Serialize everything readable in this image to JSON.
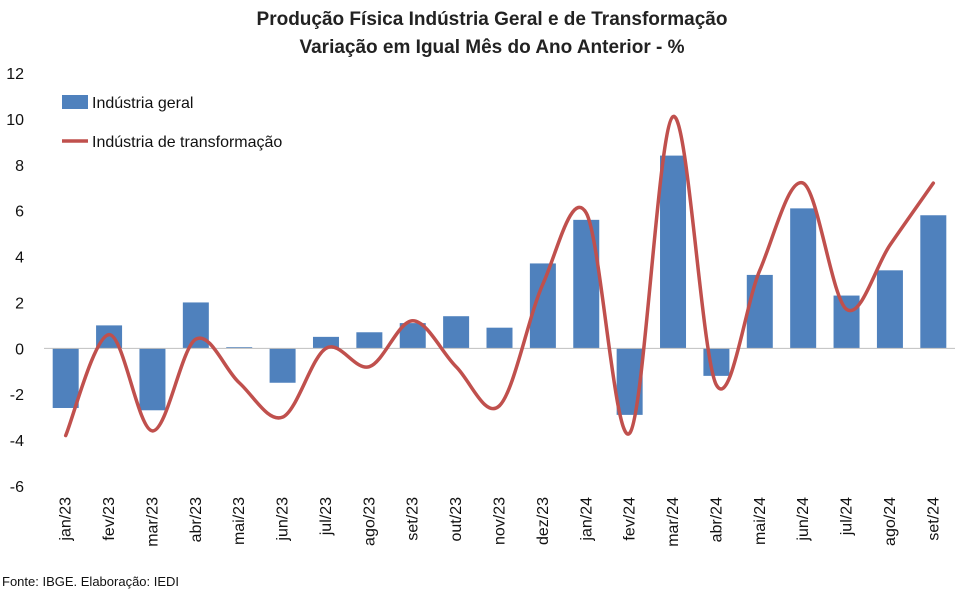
{
  "chart_data": {
    "type": "bar",
    "title": "Produção Física Indústria Geral e de Transformação",
    "subtitle": "Variação em Igual Mês do Ano Anterior - %",
    "xlabel": "",
    "ylabel": "",
    "ylim": [
      -6,
      12
    ],
    "yticks": [
      -6,
      -4,
      -2,
      0,
      2,
      4,
      6,
      8,
      10,
      12
    ],
    "categories": [
      "jan/23",
      "fev/23",
      "mar/23",
      "abr/23",
      "mai/23",
      "jun/23",
      "jul/23",
      "ago/23",
      "set/23",
      "out/23",
      "nov/23",
      "dez/23",
      "jan/24",
      "fev/24",
      "mar/24",
      "abr/24",
      "mai/24",
      "jun/24",
      "jul/24",
      "ago/24",
      "set/24"
    ],
    "series": [
      {
        "name": "Indústria geral",
        "kind": "bar",
        "color": "#4f81bd",
        "values": [
          -2.6,
          1.0,
          -2.7,
          2.0,
          0.05,
          -1.5,
          0.5,
          0.7,
          1.1,
          1.4,
          0.9,
          3.7,
          5.6,
          -2.9,
          8.4,
          -1.2,
          3.2,
          6.1,
          2.3,
          3.4,
          5.8
        ]
      },
      {
        "name": "Indústria de transformação",
        "kind": "line",
        "color": "#c0504d",
        "values": [
          -3.8,
          0.6,
          -3.6,
          0.4,
          -1.5,
          -3.0,
          0.0,
          -0.8,
          1.2,
          -0.8,
          -2.5,
          2.8,
          5.9,
          -3.7,
          10.1,
          -1.6,
          3.4,
          7.2,
          1.7,
          4.5,
          7.2
        ]
      }
    ],
    "legend": "top-left"
  },
  "source": "Fonte: IBGE. Elaboração: IEDI"
}
